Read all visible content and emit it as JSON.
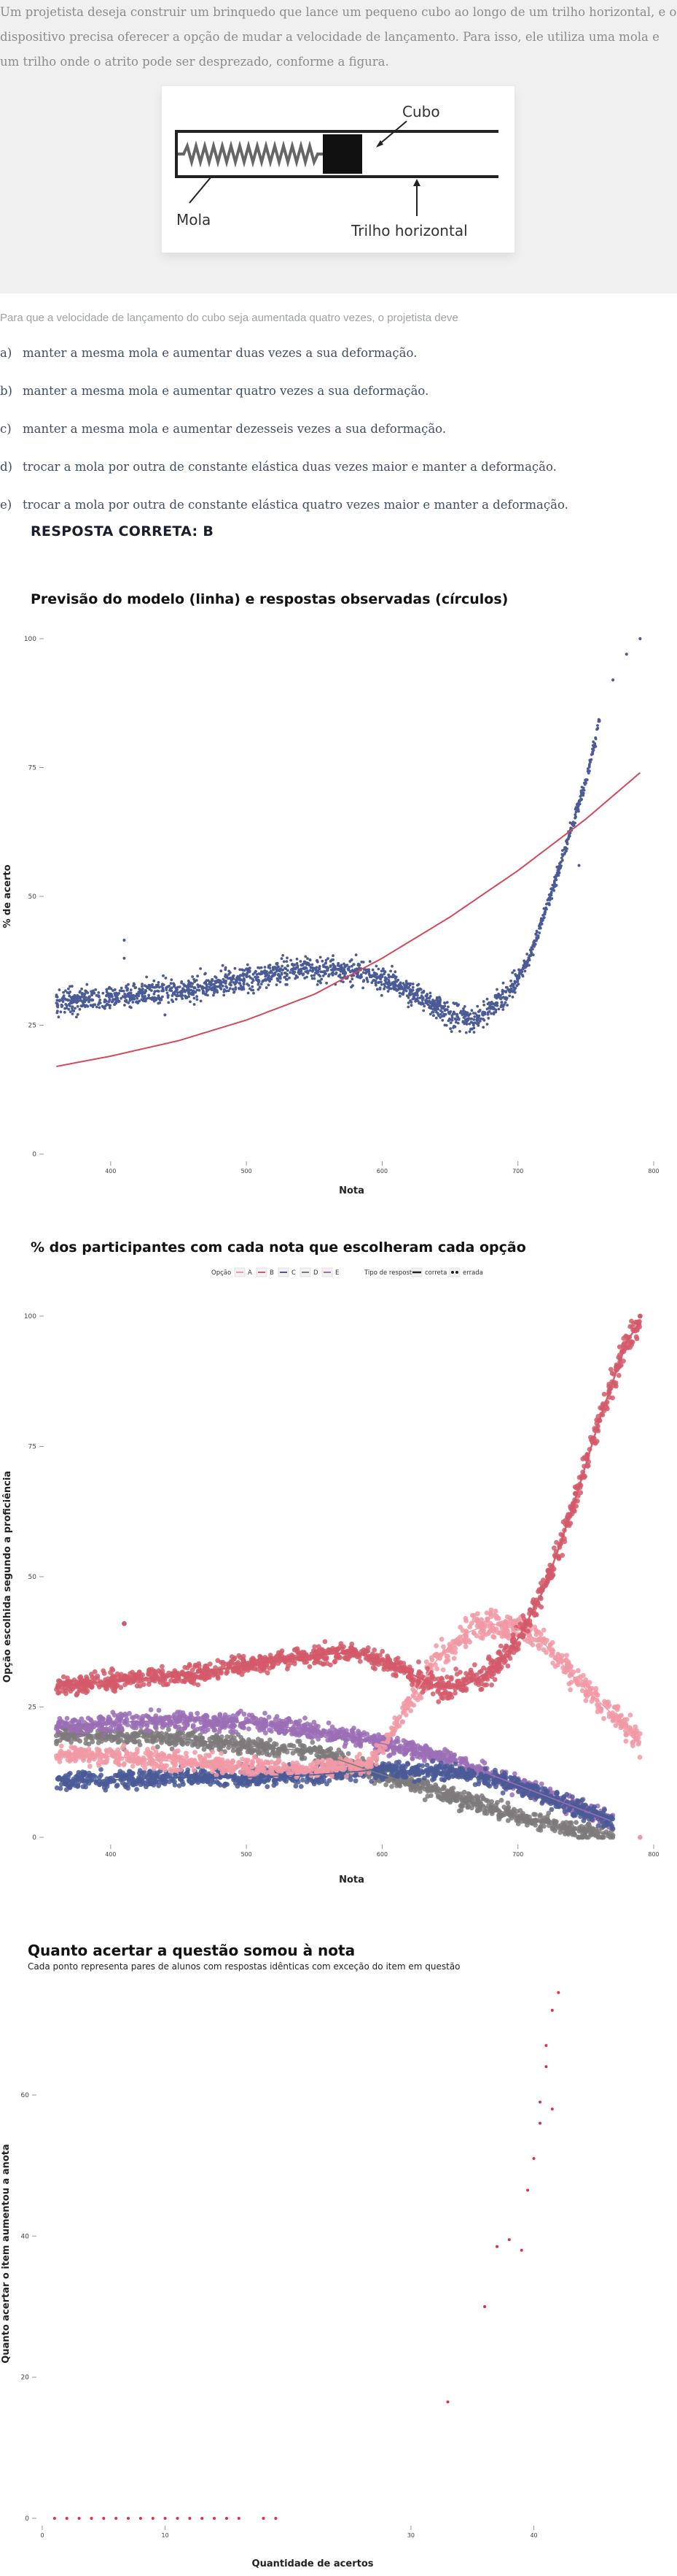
{
  "question": {
    "intro": "Um projetista deseja construir um brinquedo que lance um pequeno cubo ao longo de um trilho horizontal, e o dispositivo precisa oferecer a opção de mudar a velocidade de lançamento. Para isso, ele utiliza uma mola e um trilho onde o atrito pode ser desprezado, conforme a figura.",
    "figure": {
      "label_cube": "Cubo",
      "label_spring": "Mola",
      "label_track": "Trilho horizontal"
    },
    "prompt": "Para que a velocidade de lançamento do cubo seja aumentada quatro vezes, o projetista deve",
    "options": [
      {
        "letter": "a)",
        "text": "manter a mesma mola e aumentar duas vezes a sua deformação."
      },
      {
        "letter": "b)",
        "text": "manter a mesma mola e aumentar quatro vezes a sua deformação."
      },
      {
        "letter": "c)",
        "text": "manter a mesma mola e aumentar dezesseis vezes a sua deformação."
      },
      {
        "letter": "d)",
        "text": "trocar a mola por outra de constante elástica duas vezes maior e manter a deformação."
      },
      {
        "letter": "e)",
        "text": "trocar a mola por outra de constante elástica quatro vezes maior e manter a deformação."
      }
    ],
    "answer": "RESPOSTA CORRETA: B"
  },
  "colors": {
    "option_a": "#f19aa6",
    "option_b": "#d35a6a",
    "option_c": "#4a5b96",
    "option_d": "#7e7a7b",
    "option_e": "#9b6fb5",
    "model_line": "#d04a5c",
    "observed_points": "#4a5b96"
  },
  "chart_data": [
    {
      "type": "scatter",
      "title": "Previsão do modelo (linha) e respostas observadas (círculos)",
      "xlabel": "Nota",
      "ylabel": "% de acerto",
      "x_ticks": [
        "400",
        "500",
        "600",
        "700",
        "800"
      ],
      "y_ticks": [
        "0",
        "25",
        "50",
        "75",
        "100"
      ],
      "xlim": [
        355,
        800
      ],
      "ylim": [
        0,
        100
      ],
      "grid": false,
      "series": [
        {
          "kind": "line",
          "x": [
            360,
            400,
            450,
            500,
            550,
            600,
            650,
            700,
            750,
            790
          ],
          "y": [
            17,
            19,
            22,
            26,
            31,
            38,
            46,
            55,
            65,
            74
          ]
        },
        {
          "kind": "points",
          "x": [
            360,
            380,
            400,
            420,
            440,
            460,
            480,
            500,
            520,
            540,
            560,
            580,
            600,
            610,
            620,
            630,
            640,
            650,
            660,
            670,
            680,
            690,
            700,
            710,
            720,
            730,
            740,
            745,
            750,
            755,
            760,
            770,
            780,
            790
          ],
          "y": [
            29,
            30,
            30.5,
            31,
            31.5,
            32,
            33,
            34,
            35,
            36,
            36,
            35.5,
            34,
            33,
            31.5,
            30,
            28.5,
            27,
            26.5,
            26.5,
            28,
            30.5,
            34,
            39,
            47,
            55,
            64,
            68,
            72,
            78,
            84,
            92,
            97,
            100
          ]
        }
      ]
    },
    {
      "type": "scatter",
      "title": "% dos participantes com cada nota que escolheram cada opção",
      "xlabel": "Nota",
      "ylabel": "Opção escolhida segundo a proficiência",
      "legend": {
        "option_title": "Opção",
        "options": [
          "A",
          "B",
          "C",
          "D",
          "E"
        ],
        "type_title": "Tipo de resposta",
        "types": [
          "correta",
          "errada"
        ],
        "placement": "top"
      },
      "x_ticks": [
        "400",
        "500",
        "600",
        "700",
        "800"
      ],
      "y_ticks": [
        "0",
        "25",
        "50",
        "75",
        "100"
      ],
      "xlim": [
        355,
        800
      ],
      "ylim": [
        0,
        100
      ],
      "grid": false,
      "series": [
        {
          "name": "A",
          "x": [
            360,
            400,
            450,
            500,
            550,
            590,
            600,
            620,
            640,
            660,
            680,
            700,
            720,
            740,
            760,
            780,
            790
          ],
          "y": [
            16,
            15.5,
            14.5,
            13.5,
            13,
            14,
            17,
            26,
            34,
            39,
            41,
            40,
            37,
            31,
            26,
            21,
            18
          ]
        },
        {
          "name": "B",
          "x": [
            360,
            400,
            450,
            500,
            550,
            580,
            600,
            620,
            640,
            660,
            680,
            700,
            720,
            740,
            760,
            780,
            790
          ],
          "y": [
            29,
            30,
            31,
            33,
            35,
            35.5,
            34,
            31.5,
            29,
            29,
            32,
            38,
            48,
            63,
            80,
            95,
            99
          ]
        },
        {
          "name": "C",
          "x": [
            360,
            400,
            450,
            500,
            550,
            600,
            650,
            700,
            740,
            770
          ],
          "y": [
            11,
            11,
            11.5,
            11.5,
            12,
            13,
            12.5,
            10,
            6,
            3
          ]
        },
        {
          "name": "D",
          "x": [
            360,
            400,
            450,
            500,
            550,
            600,
            650,
            700,
            740,
            770
          ],
          "y": [
            20,
            19.5,
            19,
            17.5,
            16.5,
            12,
            8,
            4,
            1.5,
            0.5
          ]
        },
        {
          "name": "E",
          "x": [
            360,
            400,
            450,
            500,
            550,
            600,
            650,
            700,
            740,
            770
          ],
          "y": [
            21,
            22,
            22.5,
            22,
            20.5,
            18,
            15,
            10,
            6,
            3
          ]
        }
      ]
    },
    {
      "type": "scatter",
      "title": "Quanto acertar a questão somou à nota",
      "subtitle": "Cada ponto representa pares de alunos com respostas idênticas com exceção do item em questão",
      "xlabel": "Quantidade de acertos",
      "ylabel": "Quanto acertar o item aumentou a anota",
      "x_ticks": [
        "0",
        "10",
        "30",
        "40"
      ],
      "y_ticks": [
        "0",
        "20",
        "40",
        "60"
      ],
      "xlim": [
        0,
        44
      ],
      "ylim": [
        0,
        75
      ],
      "grid": false,
      "series": [
        {
          "name": "pares",
          "x": [
            1,
            2,
            3,
            4,
            5,
            6,
            7,
            8,
            9,
            10,
            11,
            12,
            13,
            14,
            15,
            16,
            18,
            19,
            33,
            36,
            37,
            38,
            39,
            39.5,
            40,
            40.5,
            40.5,
            41,
            41,
            41.5,
            41.5,
            42
          ],
          "y": [
            0,
            0,
            0,
            0,
            0,
            0,
            0,
            0,
            0,
            0,
            0,
            0,
            0,
            0,
            0,
            0,
            0,
            0,
            16.5,
            30,
            38.5,
            39.5,
            38,
            46.5,
            51,
            56,
            59,
            64,
            67,
            58,
            72,
            74.5
          ]
        }
      ]
    }
  ]
}
